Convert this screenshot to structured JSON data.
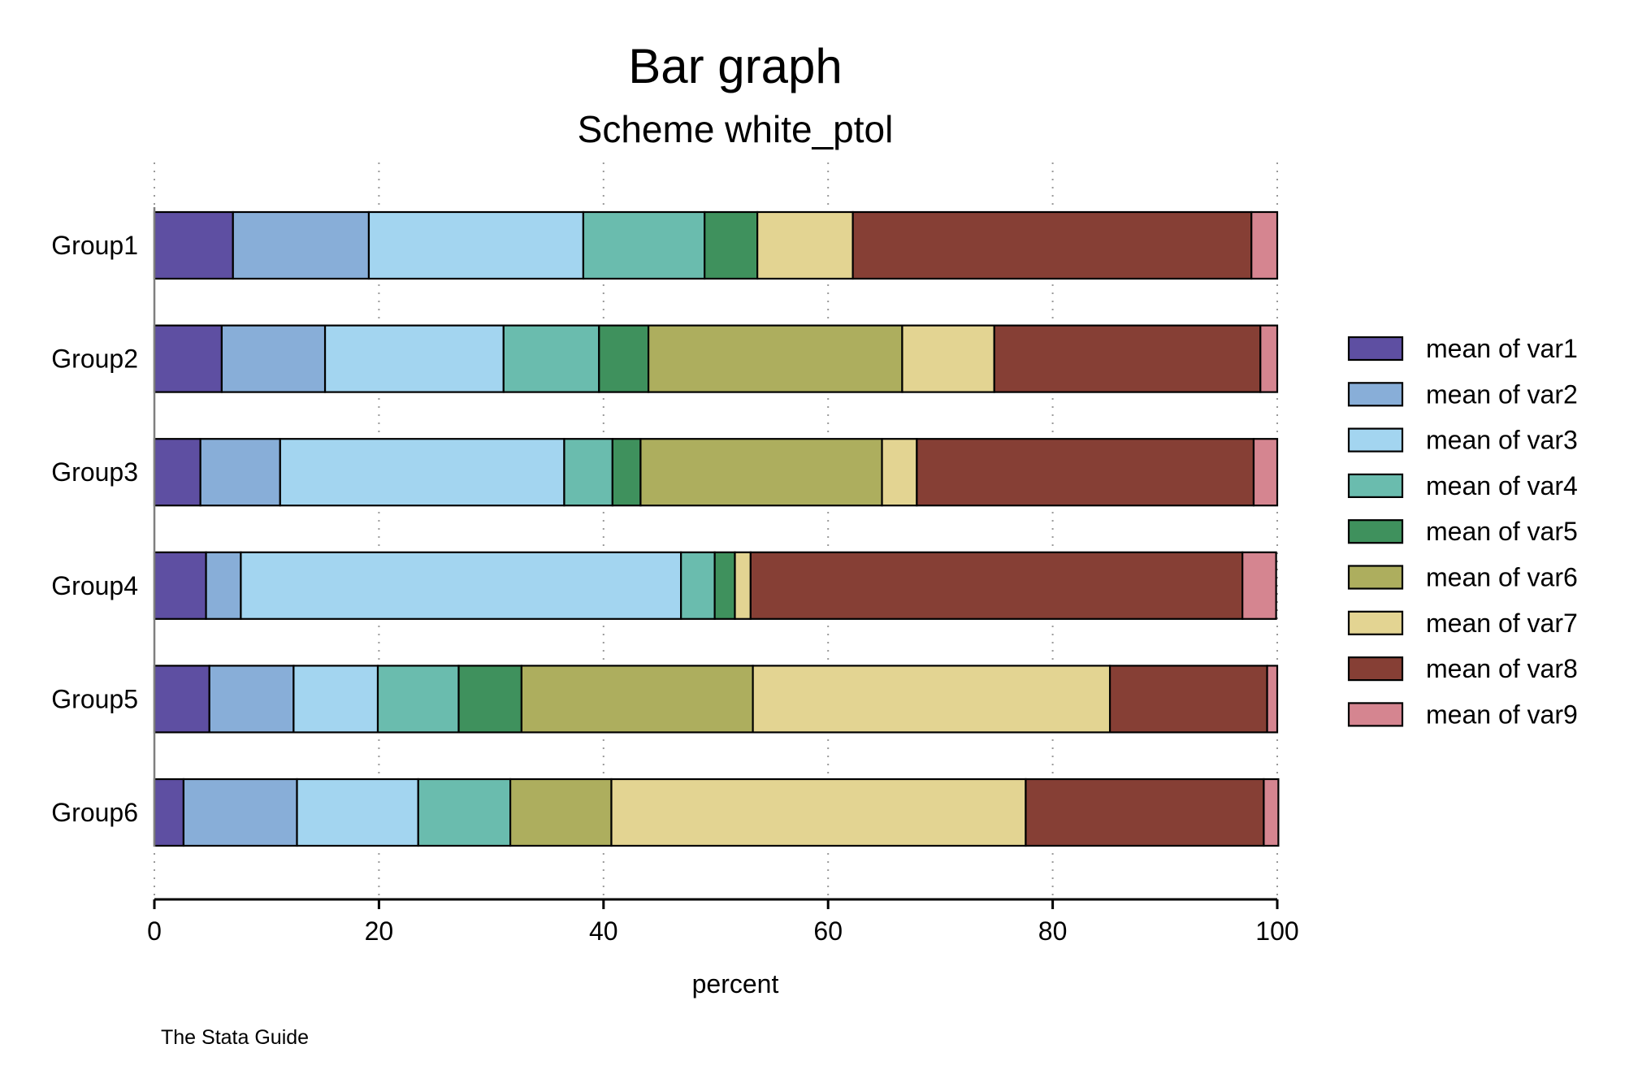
{
  "chart_data": {
    "type": "bar",
    "orientation": "horizontal",
    "stacked": true,
    "title": "Bar graph",
    "subtitle": "Scheme white_ptol",
    "xlabel": "percent",
    "ylabel": "",
    "note": "The Stata Guide",
    "xlim": [
      0,
      100
    ],
    "xticks": [
      0,
      20,
      40,
      60,
      80,
      100
    ],
    "grid": true,
    "legend_position": "right",
    "categories": [
      "Group1",
      "Group2",
      "Group3",
      "Group4",
      "Group5",
      "Group6"
    ],
    "series": [
      {
        "name": "mean of var1",
        "color": "#5E4FA2",
        "values": [
          7.0,
          6.0,
          4.1,
          4.6,
          4.9,
          2.6
        ]
      },
      {
        "name": "mean of var2",
        "color": "#88AED8",
        "values": [
          12.1,
          9.2,
          7.1,
          3.1,
          7.5,
          10.1
        ]
      },
      {
        "name": "mean of var3",
        "color": "#A3D5F0",
        "values": [
          19.1,
          15.9,
          25.3,
          39.2,
          7.5,
          10.8
        ]
      },
      {
        "name": "mean of var4",
        "color": "#6ABCAE",
        "values": [
          10.8,
          8.5,
          4.3,
          3.0,
          7.2,
          8.2
        ]
      },
      {
        "name": "mean of var5",
        "color": "#3F915D",
        "values": [
          4.7,
          4.4,
          2.5,
          1.8,
          5.6,
          0
        ]
      },
      {
        "name": "mean of var6",
        "color": "#ADAE5E",
        "values": [
          0,
          22.6,
          21.5,
          0,
          20.6,
          9.0
        ]
      },
      {
        "name": "mean of var7",
        "color": "#E3D492",
        "values": [
          8.5,
          8.2,
          3.1,
          1.4,
          31.8,
          36.9
        ]
      },
      {
        "name": "mean of var8",
        "color": "#863F35",
        "values": [
          35.5,
          23.7,
          30.0,
          43.8,
          14.0,
          21.2
        ]
      },
      {
        "name": "mean of var9",
        "color": "#D58590",
        "values": [
          2.3,
          1.5,
          2.1,
          3.0,
          0.9,
          1.3
        ]
      }
    ]
  }
}
